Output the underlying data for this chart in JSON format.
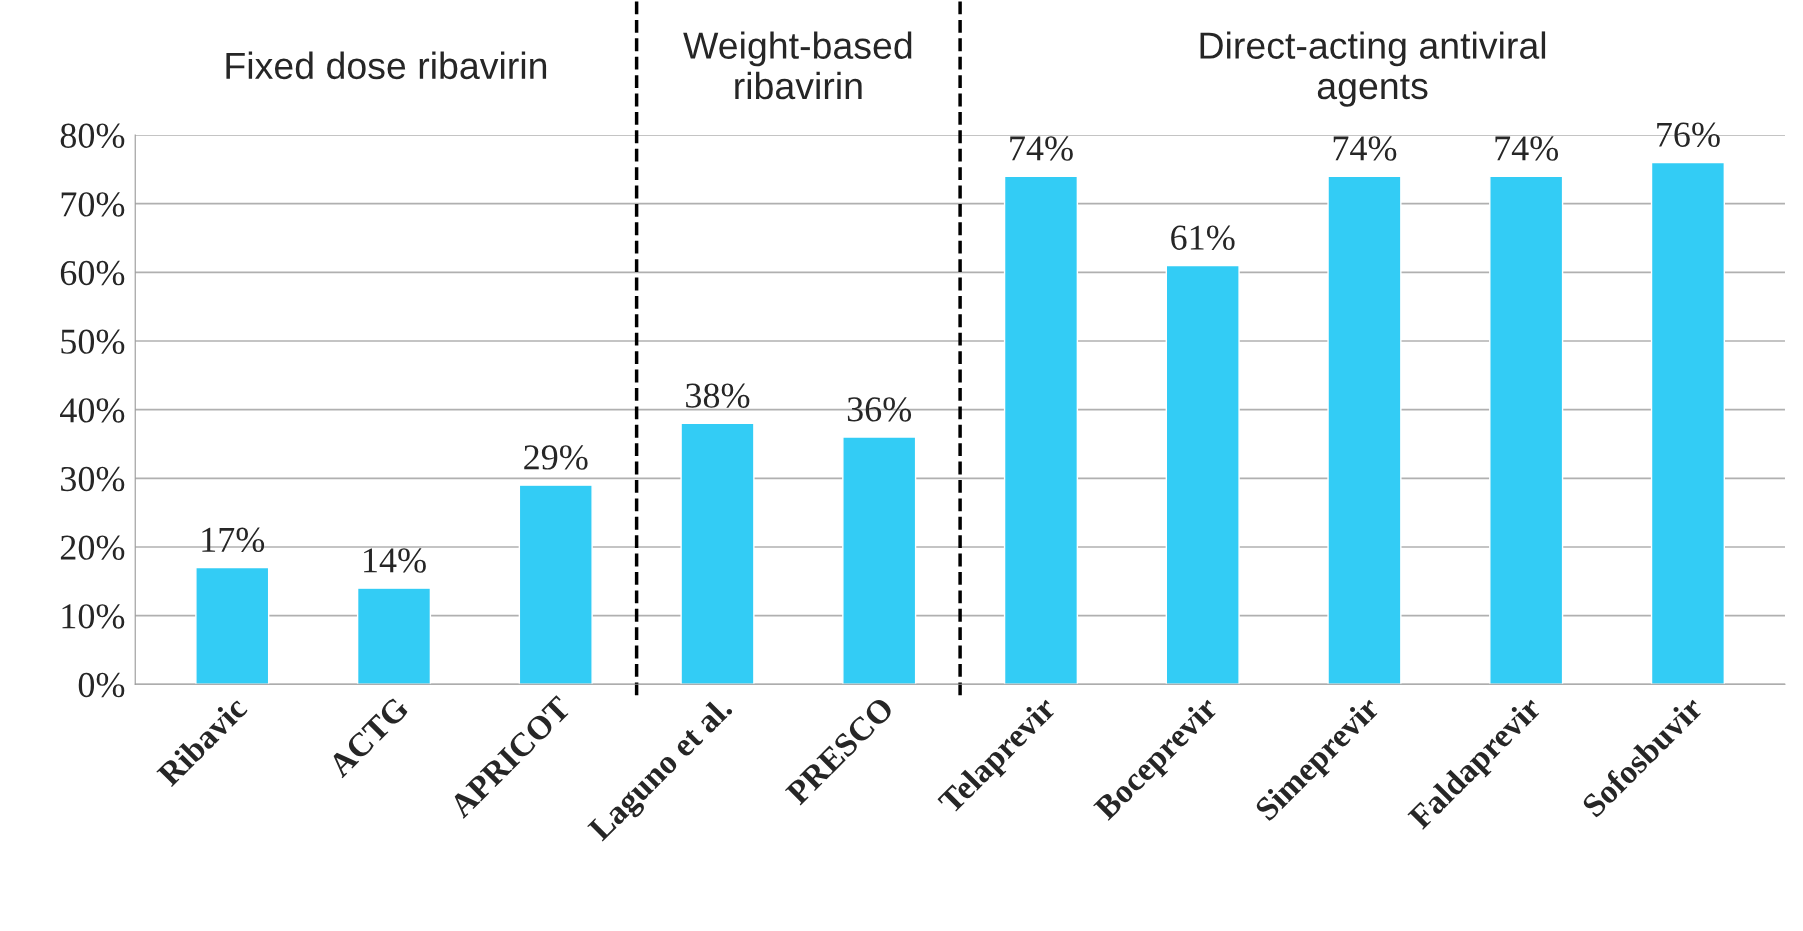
{
  "chart_data": {
    "type": "bar",
    "categories": [
      "Ribavic",
      "ACTG",
      "APRICOT",
      "Laguno et al.",
      "PRESCO",
      "Telaprevir",
      "Boceprevir",
      "Simeprevir",
      "Faldaprevir",
      "Sofosbuvir"
    ],
    "values": [
      17,
      14,
      29,
      38,
      36,
      74,
      61,
      74,
      74,
      76
    ],
    "value_labels": [
      "17%",
      "14%",
      "29%",
      "38%",
      "36%",
      "74%",
      "61%",
      "74%",
      "74%",
      "76%"
    ],
    "color": "#33ccf5",
    "ylim": [
      0,
      80
    ],
    "yticks": [
      {
        "value": 0,
        "label": "0%"
      },
      {
        "value": 10,
        "label": "10%"
      },
      {
        "value": 20,
        "label": "20%"
      },
      {
        "value": 30,
        "label": "30%"
      },
      {
        "value": 40,
        "label": "40%"
      },
      {
        "value": 50,
        "label": "50%"
      },
      {
        "value": 60,
        "label": "60%"
      },
      {
        "value": 70,
        "label": "70%"
      },
      {
        "value": 80,
        "label": "80%"
      }
    ],
    "grid": "y",
    "annotations": [
      "Fixed dose ribavirin",
      "Weight-based\nribavirin",
      "Direct-acting antiviral\nagents"
    ]
  }
}
